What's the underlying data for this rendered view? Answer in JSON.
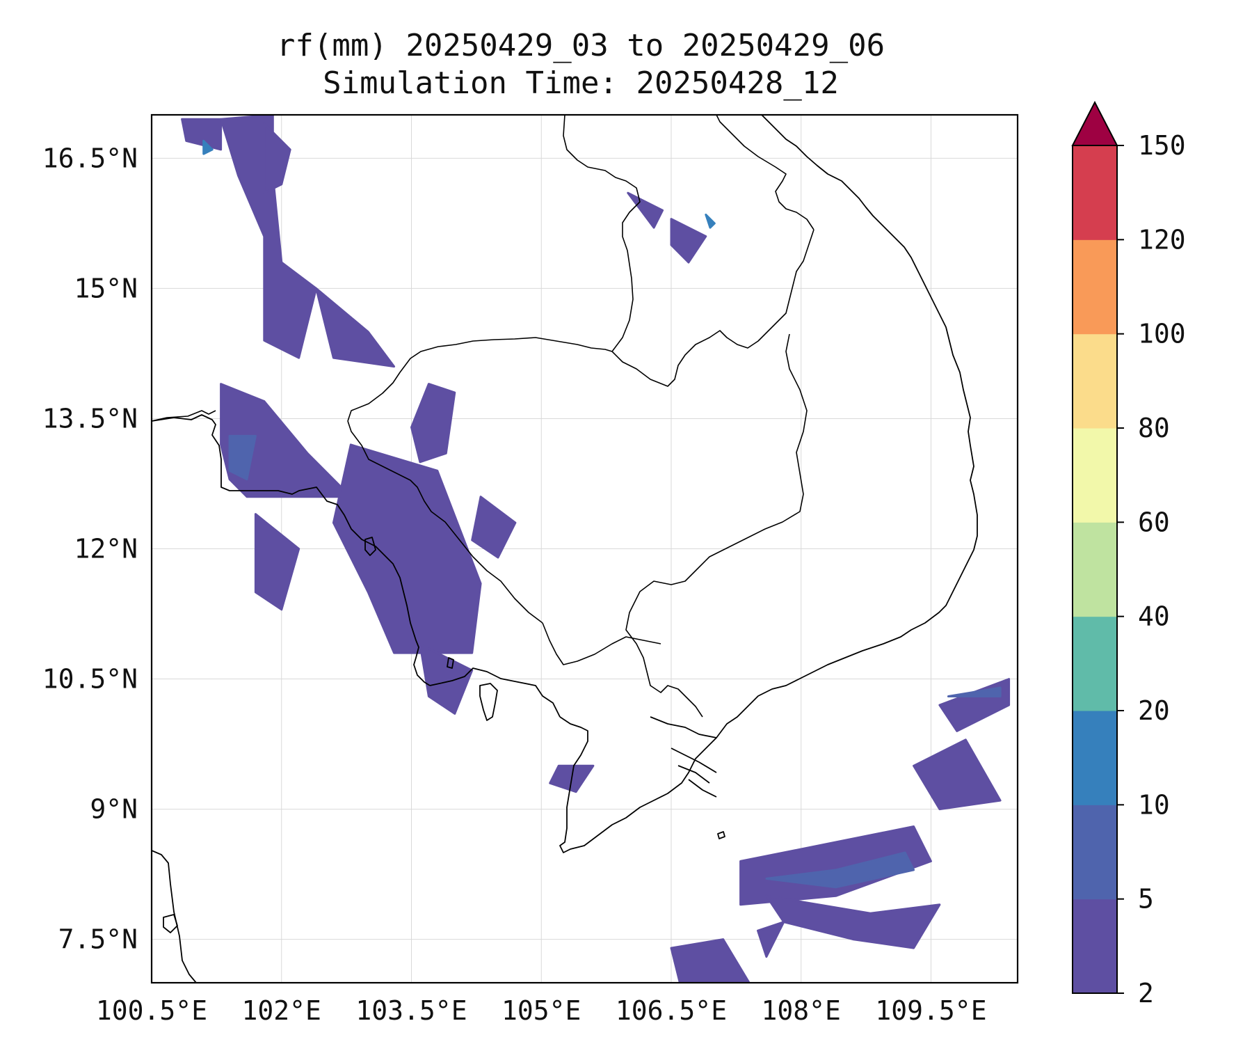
{
  "title_line1": "rf(mm) 20250429_03 to 20250429_06",
  "title_line2": "Simulation Time: 20250428_12",
  "x_ticks": [
    "100.5°E",
    "102°E",
    "103.5°E",
    "105°E",
    "106.5°E",
    "108°E",
    "109.5°E"
  ],
  "y_ticks": [
    "16.5°N",
    "15°N",
    "13.5°N",
    "12°N",
    "10.5°N",
    "9°N",
    "7.5°N"
  ],
  "colorbar": {
    "labels": [
      "2",
      "5",
      "10",
      "20",
      "40",
      "60",
      "80",
      "100",
      "120",
      "150"
    ],
    "colors": [
      "#5e4fa2",
      "#4f64ad",
      "#3680bc",
      "#60bba9",
      "#bfe3a0",
      "#f2f8aa",
      "#fbdc8b",
      "#f99a58",
      "#d53e4f",
      "#9e0142"
    ]
  },
  "map_data": {
    "variable": "rf(mm)",
    "extent_lon": [
      100.5,
      110.5
    ],
    "extent_lat": [
      7.0,
      17.0
    ],
    "rain_areas": [
      {
        "id": "a1",
        "level": 0,
        "points": [
          [
            100.85,
            16.95
          ],
          [
            101.3,
            16.95
          ],
          [
            101.3,
            16.6
          ],
          [
            100.9,
            16.7
          ]
        ]
      },
      {
        "id": "a2",
        "level": 0,
        "points": [
          [
            101.3,
            16.95
          ],
          [
            101.9,
            17.0
          ],
          [
            101.9,
            16.3
          ],
          [
            102.0,
            15.3
          ],
          [
            102.4,
            15.0
          ],
          [
            102.3,
            14.6
          ],
          [
            102.2,
            14.2
          ],
          [
            101.8,
            14.4
          ],
          [
            101.8,
            15.6
          ],
          [
            101.5,
            16.3
          ]
        ]
      },
      {
        "id": "a3",
        "level": 0,
        "points": [
          [
            102.4,
            15.0
          ],
          [
            102.6,
            14.2
          ],
          [
            103.3,
            14.1
          ],
          [
            103.0,
            14.5
          ]
        ]
      },
      {
        "id": "a4",
        "level": 0,
        "points": [
          [
            101.8,
            16.9
          ],
          [
            102.1,
            16.6
          ],
          [
            102.0,
            16.2
          ],
          [
            101.8,
            16.1
          ]
        ]
      },
      {
        "id": "a5",
        "level": 0,
        "points": [
          [
            101.3,
            13.9
          ],
          [
            101.8,
            13.7
          ],
          [
            102.3,
            13.1
          ],
          [
            102.8,
            12.6
          ],
          [
            101.6,
            12.6
          ],
          [
            101.4,
            12.8
          ],
          [
            101.3,
            13.2
          ]
        ]
      },
      {
        "id": "a6",
        "level": 0,
        "points": [
          [
            101.7,
            12.4
          ],
          [
            102.2,
            12.0
          ],
          [
            102.0,
            11.3
          ],
          [
            101.7,
            11.5
          ]
        ]
      },
      {
        "id": "a7",
        "level": 0,
        "points": [
          [
            102.8,
            13.2
          ],
          [
            103.8,
            12.9
          ],
          [
            104.3,
            11.6
          ],
          [
            104.2,
            10.8
          ],
          [
            103.3,
            10.8
          ],
          [
            103.0,
            11.5
          ],
          [
            102.6,
            12.3
          ]
        ]
      },
      {
        "id": "a8",
        "level": 0,
        "points": [
          [
            103.7,
            13.9
          ],
          [
            104.0,
            13.8
          ],
          [
            103.9,
            13.1
          ],
          [
            103.6,
            13.0
          ],
          [
            103.5,
            13.4
          ]
        ]
      },
      {
        "id": "a9",
        "level": 0,
        "points": [
          [
            104.3,
            12.6
          ],
          [
            104.7,
            12.3
          ],
          [
            104.5,
            11.9
          ],
          [
            104.2,
            12.1
          ]
        ]
      },
      {
        "id": "a10",
        "level": 0,
        "points": [
          [
            103.6,
            10.9
          ],
          [
            104.2,
            10.6
          ],
          [
            104.0,
            10.1
          ],
          [
            103.7,
            10.3
          ]
        ]
      },
      {
        "id": "a11",
        "level": 0,
        "points": [
          [
            105.2,
            9.5
          ],
          [
            105.6,
            9.5
          ],
          [
            105.4,
            9.2
          ],
          [
            105.1,
            9.3
          ]
        ]
      },
      {
        "id": "a12",
        "level": 0,
        "points": [
          [
            106.0,
            16.1
          ],
          [
            106.4,
            15.9
          ],
          [
            106.3,
            15.7
          ]
        ]
      },
      {
        "id": "a13",
        "level": 0,
        "points": [
          [
            106.5,
            15.8
          ],
          [
            106.9,
            15.6
          ],
          [
            106.7,
            15.3
          ],
          [
            106.5,
            15.5
          ]
        ]
      },
      {
        "id": "a14",
        "level": 0,
        "points": [
          [
            107.3,
            8.4
          ],
          [
            108.3,
            8.6
          ],
          [
            109.3,
            8.8
          ],
          [
            109.5,
            8.4
          ],
          [
            108.4,
            8.0
          ],
          [
            107.3,
            7.9
          ]
        ]
      },
      {
        "id": "a15",
        "level": 0,
        "points": [
          [
            107.6,
            8.0
          ],
          [
            108.8,
            7.8
          ],
          [
            109.6,
            7.9
          ],
          [
            109.3,
            7.4
          ],
          [
            108.6,
            7.5
          ],
          [
            107.8,
            7.7
          ]
        ]
      },
      {
        "id": "a16",
        "level": 0,
        "points": [
          [
            109.6,
            10.2
          ],
          [
            110.4,
            10.5
          ],
          [
            110.4,
            10.2
          ],
          [
            109.8,
            9.9
          ]
        ]
      },
      {
        "id": "a17",
        "level": 0,
        "points": [
          [
            109.3,
            9.5
          ],
          [
            109.9,
            9.8
          ],
          [
            110.3,
            9.1
          ],
          [
            109.6,
            9.0
          ]
        ]
      },
      {
        "id": "a18",
        "level": 0,
        "points": [
          [
            107.5,
            7.6
          ],
          [
            107.8,
            7.7
          ],
          [
            107.6,
            7.3
          ]
        ]
      },
      {
        "id": "a19",
        "level": 0,
        "points": [
          [
            106.5,
            7.4
          ],
          [
            107.1,
            7.5
          ],
          [
            107.4,
            7.0
          ],
          [
            106.6,
            7.0
          ]
        ]
      },
      {
        "id": "a20",
        "level": 1,
        "points": [
          [
            101.4,
            13.3
          ],
          [
            101.7,
            13.3
          ],
          [
            101.6,
            12.8
          ],
          [
            101.4,
            12.9
          ]
        ]
      },
      {
        "id": "a21",
        "level": 1,
        "points": [
          [
            107.6,
            8.2
          ],
          [
            108.4,
            8.3
          ],
          [
            109.2,
            8.5
          ],
          [
            109.3,
            8.3
          ],
          [
            108.4,
            8.1
          ]
        ]
      },
      {
        "id": "a22",
        "level": 1,
        "points": [
          [
            109.7,
            10.3
          ],
          [
            110.3,
            10.4
          ],
          [
            110.3,
            10.3
          ]
        ]
      },
      {
        "id": "a23",
        "level": 2,
        "points": [
          [
            101.1,
            16.7
          ],
          [
            101.2,
            16.6
          ],
          [
            101.1,
            16.55
          ]
        ]
      },
      {
        "id": "a24",
        "level": 2,
        "points": [
          [
            106.9,
            15.85
          ],
          [
            107.0,
            15.75
          ],
          [
            106.95,
            15.7
          ]
        ]
      }
    ]
  }
}
